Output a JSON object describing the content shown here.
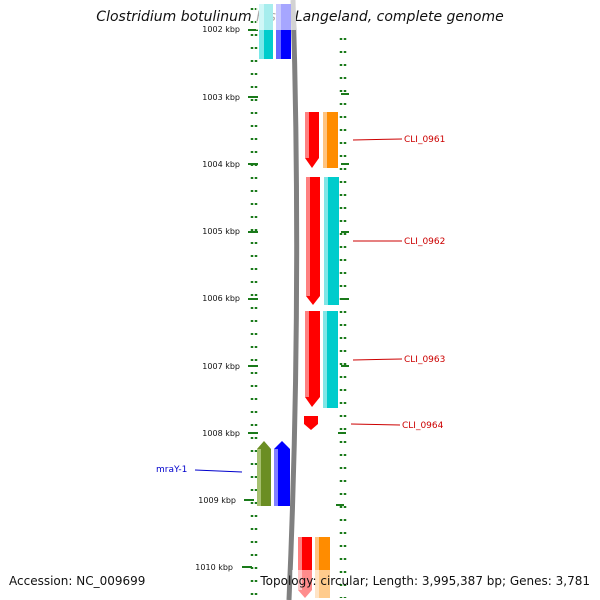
{
  "title": "Clostridium botulinum F str. Langeland, complete genome",
  "accession": "Accession: NC_009699",
  "summary": "Topology: circular; Length: 3,995,387 bp; Genes: 3,781",
  "ticks": [
    "1002 kbp",
    "1003 kbp",
    "1004 kbp",
    "1005 kbp",
    "1006 kbp",
    "1007 kbp",
    "1008 kbp",
    "1009 kbp",
    "1010 kbp"
  ],
  "gene_labels": {
    "cli0961": "CLI_0961",
    "cli0962": "CLI_0962",
    "cli0963": "CLI_0963",
    "cli0964": "CLI_0964",
    "mray1": "mraY-1"
  },
  "colors": {
    "red": "#ff0000",
    "orange": "#ff8c00",
    "cyan": "#00cccc",
    "blue": "#0000ff",
    "olive": "#6b8e23",
    "backbone": "#808080",
    "ticks": "#1a7a1a",
    "label_right": "#cc0000",
    "label_left": "#0000cc"
  }
}
